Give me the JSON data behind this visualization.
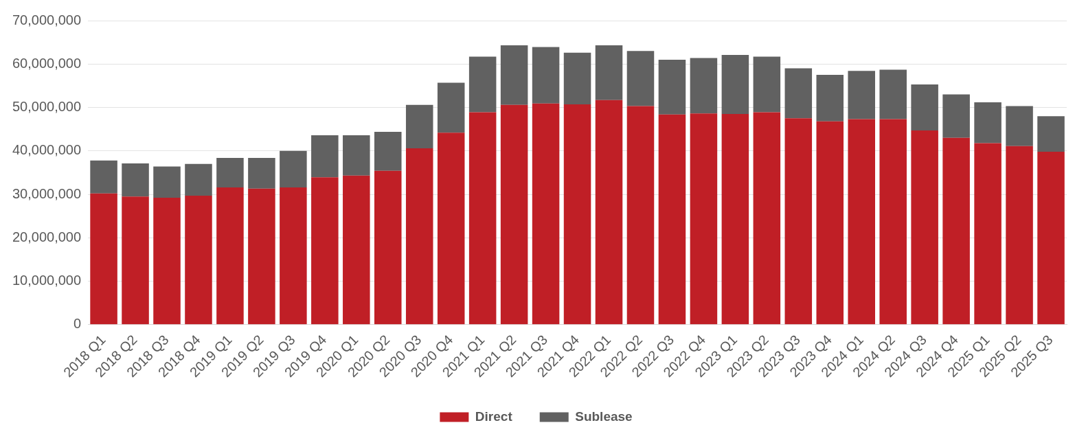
{
  "chart_data": {
    "type": "bar",
    "stacked": true,
    "categories": [
      "2018 Q1",
      "2018 Q2",
      "2018 Q3",
      "2018 Q4",
      "2019 Q1",
      "2019 Q2",
      "2019 Q3",
      "2019 Q4",
      "2020 Q1",
      "2020 Q2",
      "2020 Q3",
      "2020 Q4",
      "2021 Q1",
      "2021 Q2",
      "2021 Q3",
      "2021 Q4",
      "2022 Q1",
      "2022 Q2",
      "2022 Q3",
      "2022 Q4",
      "2023 Q1",
      "2023 Q2",
      "2023 Q3",
      "2023 Q4",
      "2024 Q1",
      "2024 Q2",
      "2024 Q3",
      "2024 Q4",
      "2025 Q1",
      "2025 Q2",
      "2025 Q3"
    ],
    "series": [
      {
        "name": "Direct",
        "color": "#c01f26",
        "values": [
          30200000,
          29500000,
          29200000,
          29700000,
          31600000,
          31300000,
          31600000,
          33900000,
          34300000,
          35400000,
          40600000,
          44200000,
          48900000,
          50600000,
          50900000,
          50700000,
          51700000,
          50300000,
          48400000,
          48600000,
          48500000,
          48900000,
          47500000,
          46800000,
          47300000,
          47300000,
          44700000,
          43000000,
          41800000,
          41100000,
          39800000
        ]
      },
      {
        "name": "Sublease",
        "color": "#616161",
        "values": [
          7600000,
          7600000,
          7200000,
          7300000,
          6800000,
          7100000,
          8400000,
          9700000,
          9300000,
          9000000,
          10000000,
          11500000,
          12800000,
          13700000,
          13000000,
          11900000,
          12600000,
          12700000,
          12600000,
          12800000,
          13600000,
          12800000,
          11500000,
          10700000,
          11100000,
          11400000,
          10600000,
          10000000,
          9400000,
          9200000,
          8200000
        ]
      }
    ],
    "ylim": [
      0,
      70000000
    ],
    "yticks": [
      0,
      {
        "value": 10000000,
        "label": "10,000,000"
      },
      {
        "value": 20000000,
        "label": "20,000,000"
      },
      {
        "value": 30000000,
        "label": "30,000,000"
      },
      {
        "value": 40000000,
        "label": "40,000,000"
      },
      {
        "value": 50000000,
        "label": "50,000,000"
      },
      {
        "value": 60000000,
        "label": "60,000,000"
      },
      {
        "value": 70000000,
        "label": "70,000,000"
      }
    ],
    "grid": "y",
    "legend": "bottom"
  }
}
